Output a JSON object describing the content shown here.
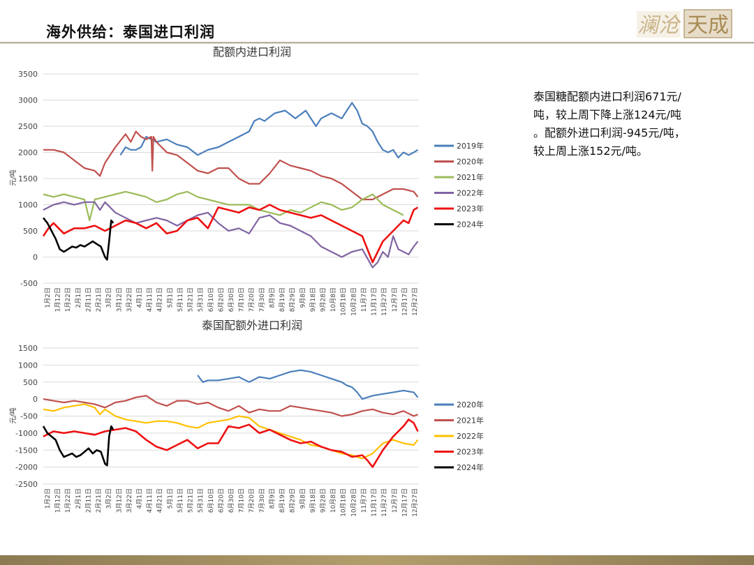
{
  "header": {
    "title": "海外供给：泰国进口利润",
    "logo_text": "澜沧天成"
  },
  "summary": {
    "lines": [
      "泰国糖配额内进口利润671元/",
      "吨，较上周下降上涨124元/吨",
      "。配额外进口利润-945元/吨，",
      "较上周上涨152元/吨。"
    ]
  },
  "colors": {
    "2019年": "#4a7ebb",
    "2020年": "#c0504d",
    "2021年": "#9bbb59",
    "2022年": "#8064a2",
    "2023年": "#ee1111",
    "2024年": "#000000",
    "2022年_yellow": "#ffc000"
  },
  "chart_data": [
    {
      "type": "line",
      "title": "配额内进口利润",
      "ylabel": "元/吨",
      "ylim": [
        -500,
        3500
      ],
      "yticks": [
        -500,
        0,
        500,
        1000,
        1500,
        2000,
        2500,
        3000,
        3500
      ],
      "x_tick_labels": [
        "1月2日",
        "1月12日",
        "1月22日",
        "2月1日",
        "2月11日",
        "2月21日",
        "3月2日",
        "3月12日",
        "3月22日",
        "4月1日",
        "4月11日",
        "4月21日",
        "5月1日",
        "5月11日",
        "5月21日",
        "5月31日",
        "6月10日",
        "6月20日",
        "6月30日",
        "7月10日",
        "7月20日",
        "7月30日",
        "8月9日",
        "8月19日",
        "8月29日",
        "9月8日",
        "9月18日",
        "9月28日",
        "10月8日",
        "10月18日",
        "10月28日",
        "11月7日",
        "11月17日",
        "11月27日",
        "12月7日",
        "12月17日",
        "12月27日"
      ],
      "legend_position": "right",
      "series": [
        {
          "name": "2019年",
          "color": "#4a7ebb",
          "x": [
            75,
            80,
            85,
            90,
            95,
            100,
            110,
            120,
            130,
            140,
            150,
            160,
            170,
            180,
            190,
            200,
            205,
            210,
            215,
            225,
            235,
            245,
            255,
            265,
            270,
            275,
            280,
            285,
            290,
            295,
            300,
            305,
            310,
            315,
            320,
            325,
            330,
            335,
            340,
            345,
            350,
            355,
            360,
            364
          ],
          "y": [
            1950,
            2100,
            2050,
            2050,
            2100,
            2300,
            2200,
            2250,
            2150,
            2100,
            1950,
            2050,
            2100,
            2200,
            2300,
            2400,
            2600,
            2650,
            2600,
            2750,
            2800,
            2650,
            2800,
            2500,
            2650,
            2700,
            2750,
            2700,
            2650,
            2800,
            2950,
            2800,
            2550,
            2500,
            2400,
            2200,
            2050,
            2000,
            2050,
            1900,
            2000,
            1950,
            2000,
            2050
          ]
        },
        {
          "name": "2020年",
          "color": "#c0504d",
          "x": [
            0,
            10,
            20,
            30,
            40,
            50,
            55,
            60,
            70,
            80,
            85,
            90,
            95,
            100,
            105,
            106,
            107,
            110,
            120,
            130,
            140,
            150,
            160,
            170,
            180,
            190,
            200,
            210,
            220,
            230,
            240,
            250,
            260,
            270,
            280,
            290,
            300,
            310,
            320,
            330,
            340,
            350,
            360,
            364
          ],
          "y": [
            2050,
            2050,
            2000,
            1850,
            1700,
            1650,
            1550,
            1800,
            2100,
            2350,
            2200,
            2400,
            2300,
            2250,
            2300,
            1650,
            2300,
            2200,
            2000,
            1950,
            1800,
            1650,
            1600,
            1700,
            1700,
            1500,
            1400,
            1400,
            1600,
            1850,
            1750,
            1700,
            1650,
            1550,
            1500,
            1400,
            1250,
            1100,
            1100,
            1200,
            1300,
            1300,
            1250,
            1150
          ]
        },
        {
          "name": "2021年",
          "color": "#9bbb59",
          "x": [
            0,
            10,
            20,
            30,
            40,
            45,
            50,
            60,
            70,
            80,
            90,
            100,
            110,
            120,
            130,
            140,
            150,
            160,
            170,
            180,
            190,
            200,
            210,
            220,
            230,
            240,
            250,
            260,
            270,
            280,
            290,
            300,
            310,
            320,
            330,
            340,
            350
          ],
          "y": [
            1200,
            1150,
            1200,
            1150,
            1100,
            700,
            1100,
            1150,
            1200,
            1250,
            1200,
            1150,
            1050,
            1100,
            1200,
            1250,
            1150,
            1100,
            1050,
            1000,
            1000,
            1000,
            900,
            850,
            800,
            900,
            850,
            950,
            1050,
            1000,
            900,
            950,
            1100,
            1200,
            1000,
            900,
            800
          ]
        },
        {
          "name": "2022年",
          "color": "#8064a2",
          "x": [
            0,
            10,
            20,
            30,
            40,
            50,
            55,
            60,
            70,
            80,
            90,
            100,
            110,
            120,
            130,
            140,
            150,
            160,
            170,
            180,
            190,
            200,
            210,
            220,
            230,
            240,
            250,
            260,
            270,
            280,
            290,
            300,
            310,
            320,
            325,
            330,
            335,
            340,
            345,
            350,
            355,
            360,
            364
          ],
          "y": [
            900,
            1000,
            1050,
            1000,
            1050,
            1050,
            900,
            1050,
            850,
            750,
            650,
            700,
            750,
            700,
            600,
            700,
            800,
            850,
            650,
            500,
            550,
            450,
            750,
            800,
            650,
            600,
            500,
            400,
            200,
            100,
            0,
            100,
            150,
            -200,
            -100,
            100,
            0,
            400,
            150,
            100,
            50,
            200,
            300
          ]
        },
        {
          "name": "2023年",
          "color": "#ee1111",
          "x": [
            0,
            5,
            10,
            20,
            30,
            40,
            50,
            60,
            70,
            80,
            90,
            100,
            110,
            120,
            130,
            140,
            150,
            160,
            170,
            180,
            190,
            200,
            210,
            220,
            230,
            240,
            250,
            260,
            270,
            280,
            290,
            300,
            310,
            320,
            330,
            335,
            340,
            345,
            350,
            355,
            360,
            364
          ],
          "y": [
            400,
            550,
            650,
            450,
            550,
            550,
            600,
            500,
            600,
            700,
            650,
            550,
            650,
            450,
            500,
            700,
            750,
            550,
            950,
            900,
            850,
            950,
            900,
            1000,
            900,
            850,
            800,
            750,
            800,
            700,
            600,
            500,
            400,
            -100,
            300,
            400,
            500,
            600,
            700,
            650,
            900,
            950
          ]
        },
        {
          "name": "2024年",
          "color": "#000000",
          "x": [
            0,
            4,
            8,
            12,
            16,
            20,
            24,
            28,
            32,
            36,
            40,
            44,
            48,
            52,
            56,
            60,
            62,
            64,
            66,
            68
          ],
          "y": [
            750,
            650,
            500,
            350,
            150,
            100,
            150,
            200,
            180,
            230,
            200,
            250,
            300,
            250,
            200,
            0,
            -50,
            300,
            700,
            650
          ]
        }
      ]
    },
    {
      "type": "line",
      "title": "泰国配额外进口利润",
      "ylabel": "元/吨",
      "ylim": [
        -2500,
        1500
      ],
      "yticks": [
        -2500,
        -2000,
        -1500,
        -1000,
        -500,
        0,
        500,
        1000,
        1500
      ],
      "x_tick_labels": [
        "1月2日",
        "1月12日",
        "1月22日",
        "2月1日",
        "2月11日",
        "2月21日",
        "3月2日",
        "3月12日",
        "3月22日",
        "4月1日",
        "4月11日",
        "4月21日",
        "5月1日",
        "5月11日",
        "5月21日",
        "5月31日",
        "6月10日",
        "6月20日",
        "6月30日",
        "7月10日",
        "7月20日",
        "7月30日",
        "8月9日",
        "8月19日",
        "8月29日",
        "9月8日",
        "9月18日",
        "9月28日",
        "10月8日",
        "10月18日",
        "10月28日",
        "11月7日",
        "11月17日",
        "11月27日",
        "12月7日",
        "12月17日",
        "12月27日"
      ],
      "legend_position": "right",
      "series": [
        {
          "name": "2020年",
          "color": "#4a7ebb",
          "x": [
            150,
            155,
            160,
            170,
            180,
            190,
            200,
            210,
            220,
            230,
            240,
            250,
            260,
            270,
            280,
            290,
            295,
            300,
            305,
            310,
            320,
            330,
            340,
            350,
            360,
            364
          ],
          "y": [
            700,
            500,
            550,
            550,
            600,
            650,
            500,
            650,
            600,
            700,
            800,
            850,
            800,
            700,
            600,
            500,
            400,
            350,
            200,
            0,
            100,
            150,
            200,
            250,
            200,
            50
          ]
        },
        {
          "name": "2021年",
          "color": "#c0504d",
          "x": [
            0,
            10,
            20,
            30,
            40,
            50,
            60,
            70,
            80,
            90,
            100,
            110,
            120,
            130,
            140,
            150,
            160,
            170,
            180,
            190,
            200,
            210,
            220,
            230,
            240,
            250,
            260,
            270,
            280,
            290,
            300,
            310,
            320,
            330,
            340,
            350,
            360,
            364
          ],
          "y": [
            0,
            -50,
            -100,
            -50,
            -100,
            -150,
            -250,
            -100,
            -50,
            50,
            100,
            -100,
            -200,
            -50,
            -50,
            -150,
            -100,
            -250,
            -350,
            -200,
            -400,
            -300,
            -350,
            -350,
            -200,
            -250,
            -300,
            -350,
            -400,
            -500,
            -450,
            -350,
            -300,
            -400,
            -450,
            -350,
            -500,
            -450
          ]
        },
        {
          "name": "2022年",
          "color": "#ffc000",
          "x": [
            0,
            10,
            20,
            30,
            40,
            50,
            55,
            60,
            70,
            80,
            90,
            100,
            110,
            120,
            130,
            140,
            150,
            160,
            170,
            180,
            190,
            200,
            210,
            220,
            230,
            240,
            250,
            260,
            270,
            280,
            290,
            300,
            310,
            320,
            330,
            340,
            350,
            360,
            364
          ],
          "y": [
            -300,
            -350,
            -250,
            -200,
            -150,
            -250,
            -450,
            -300,
            -500,
            -600,
            -650,
            -700,
            -650,
            -650,
            -700,
            -800,
            -850,
            -700,
            -650,
            -600,
            -500,
            -550,
            -800,
            -900,
            -1000,
            -1100,
            -1200,
            -1350,
            -1400,
            -1500,
            -1600,
            -1650,
            -1750,
            -1600,
            -1300,
            -1200,
            -1300,
            -1350,
            -1200
          ]
        },
        {
          "name": "2023年",
          "color": "#ee1111",
          "x": [
            0,
            10,
            20,
            30,
            40,
            50,
            60,
            70,
            80,
            90,
            100,
            110,
            120,
            130,
            140,
            150,
            160,
            170,
            180,
            190,
            200,
            210,
            220,
            230,
            240,
            250,
            260,
            270,
            280,
            290,
            300,
            310,
            315,
            320,
            330,
            340,
            350,
            355,
            360,
            364
          ],
          "y": [
            -1100,
            -950,
            -1000,
            -950,
            -1000,
            -1050,
            -950,
            -900,
            -850,
            -950,
            -1200,
            -1400,
            -1500,
            -1350,
            -1200,
            -1450,
            -1300,
            -1300,
            -800,
            -850,
            -750,
            -1000,
            -900,
            -1050,
            -1200,
            -1300,
            -1250,
            -1400,
            -1500,
            -1550,
            -1700,
            -1650,
            -1800,
            -2000,
            -1500,
            -1100,
            -800,
            -600,
            -700,
            -950
          ]
        },
        {
          "name": "2024年",
          "color": "#000000",
          "x": [
            0,
            4,
            8,
            12,
            16,
            20,
            24,
            28,
            32,
            36,
            40,
            44,
            48,
            52,
            56,
            60,
            62,
            64,
            66,
            68
          ],
          "y": [
            -800,
            -1000,
            -1100,
            -1200,
            -1500,
            -1700,
            -1650,
            -1600,
            -1700,
            -1650,
            -1550,
            -1450,
            -1600,
            -1500,
            -1550,
            -1900,
            -1950,
            -1100,
            -800,
            -900
          ]
        }
      ]
    }
  ]
}
